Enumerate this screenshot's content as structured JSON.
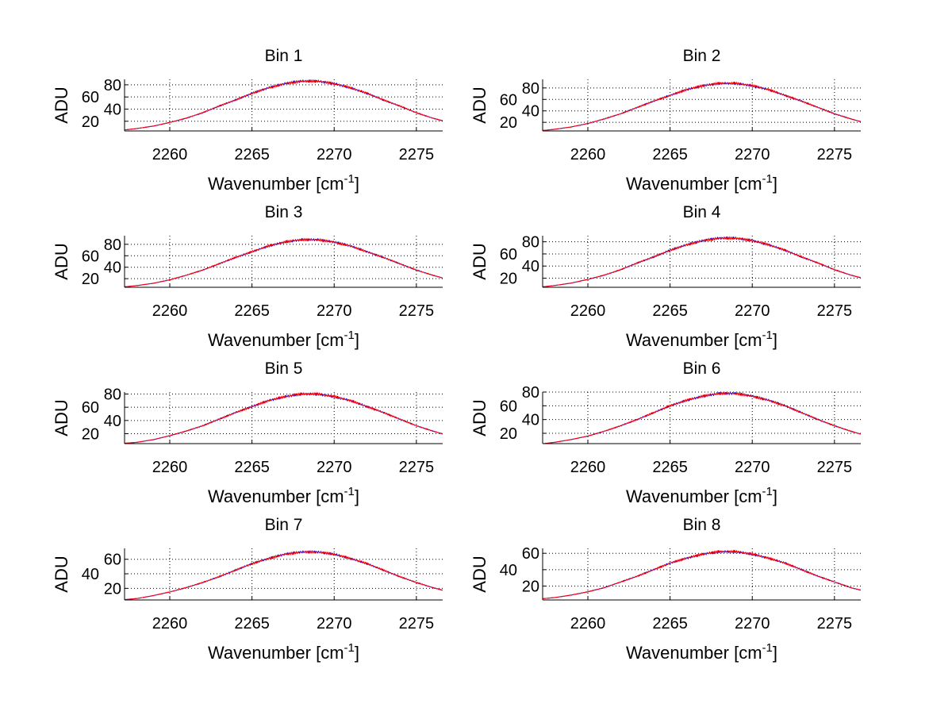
{
  "chart_data": [
    {
      "type": "line",
      "title": "Bin 1",
      "xlabel": "Wavenumber [cm",
      "xlabel_sup": "-1",
      "xlabel_end": "]",
      "ylabel": "ADU",
      "xlim": [
        2257.25,
        2276.6
      ],
      "ylim": [
        4,
        89
      ],
      "xticks": [
        2260,
        2265,
        2270,
        2275
      ],
      "yticks": [
        20,
        40,
        60,
        80
      ],
      "grid": true,
      "x": [
        2257,
        2258,
        2259,
        2260,
        2261,
        2262,
        2263,
        2264,
        2265,
        2266,
        2267,
        2268,
        2269,
        2270,
        2271,
        2272,
        2273,
        2274,
        2275,
        2276,
        2277
      ],
      "series": [
        {
          "name": "blue",
          "color": "#0000ff",
          "values": [
            5,
            8,
            12,
            18,
            25,
            34,
            45,
            55,
            66,
            75,
            82,
            86,
            86,
            82,
            75,
            66,
            55,
            45,
            34,
            25,
            18
          ]
        },
        {
          "name": "red",
          "color": "#ff0000",
          "values": [
            5,
            8,
            12,
            18,
            25,
            34,
            45,
            55,
            66,
            75,
            82,
            86,
            86,
            82,
            75,
            66,
            55,
            45,
            34,
            25,
            18
          ]
        }
      ]
    },
    {
      "type": "line",
      "title": "Bin 2",
      "xlabel": "Wavenumber [cm",
      "xlabel_sup": "-1",
      "xlabel_end": "]",
      "ylabel": "ADU",
      "xlim": [
        2257.25,
        2276.6
      ],
      "ylim": [
        5,
        95
      ],
      "xticks": [
        2260,
        2265,
        2270,
        2275
      ],
      "yticks": [
        20,
        40,
        60,
        80
      ],
      "grid": true,
      "x": [
        2257,
        2258,
        2259,
        2260,
        2261,
        2262,
        2263,
        2264,
        2265,
        2266,
        2267,
        2268,
        2269,
        2270,
        2271,
        2272,
        2273,
        2274,
        2275,
        2276,
        2277
      ],
      "series": [
        {
          "name": "blue",
          "color": "#0000ff",
          "values": [
            5,
            8,
            12,
            18,
            26,
            35,
            46,
            57,
            67,
            77,
            84,
            88,
            88,
            84,
            77,
            67,
            57,
            46,
            35,
            26,
            18
          ]
        },
        {
          "name": "red",
          "color": "#ff0000",
          "values": [
            5,
            8,
            12,
            18,
            26,
            35,
            46,
            57,
            67,
            77,
            84,
            88,
            88,
            84,
            77,
            67,
            57,
            46,
            35,
            26,
            18
          ]
        }
      ]
    },
    {
      "type": "line",
      "title": "Bin 3",
      "xlabel": "Wavenumber [cm",
      "xlabel_sup": "-1",
      "xlabel_end": "]",
      "ylabel": "ADU",
      "xlim": [
        2257.25,
        2276.6
      ],
      "ylim": [
        5,
        95
      ],
      "xticks": [
        2260,
        2265,
        2270,
        2275
      ],
      "yticks": [
        20,
        40,
        60,
        80
      ],
      "grid": true,
      "x": [
        2257,
        2258,
        2259,
        2260,
        2261,
        2262,
        2263,
        2264,
        2265,
        2266,
        2267,
        2268,
        2269,
        2270,
        2271,
        2272,
        2273,
        2274,
        2275,
        2276,
        2277
      ],
      "series": [
        {
          "name": "blue",
          "color": "#0000ff",
          "values": [
            5,
            8,
            12,
            18,
            26,
            35,
            46,
            57,
            67,
            77,
            84,
            88,
            88,
            84,
            77,
            67,
            57,
            46,
            35,
            26,
            18
          ]
        },
        {
          "name": "red",
          "color": "#ff0000",
          "values": [
            5,
            8,
            12,
            18,
            26,
            35,
            46,
            57,
            67,
            77,
            84,
            88,
            88,
            84,
            77,
            67,
            57,
            46,
            35,
            26,
            18
          ]
        }
      ]
    },
    {
      "type": "line",
      "title": "Bin 4",
      "xlabel": "Wavenumber [cm",
      "xlabel_sup": "-1",
      "xlabel_end": "]",
      "ylabel": "ADU",
      "xlim": [
        2257.25,
        2276.6
      ],
      "ylim": [
        5,
        90
      ],
      "xticks": [
        2260,
        2265,
        2270,
        2275
      ],
      "yticks": [
        20,
        40,
        60,
        80
      ],
      "grid": true,
      "x": [
        2257,
        2258,
        2259,
        2260,
        2261,
        2262,
        2263,
        2264,
        2265,
        2266,
        2267,
        2268,
        2269,
        2270,
        2271,
        2272,
        2273,
        2274,
        2275,
        2276,
        2277
      ],
      "series": [
        {
          "name": "blue",
          "color": "#0000ff",
          "values": [
            5,
            8,
            12,
            18,
            25,
            34,
            45,
            55,
            66,
            75,
            82,
            86,
            86,
            82,
            75,
            66,
            55,
            45,
            34,
            25,
            18
          ]
        },
        {
          "name": "red",
          "color": "#ff0000",
          "values": [
            5,
            8,
            12,
            18,
            25,
            34,
            45,
            55,
            66,
            75,
            82,
            86,
            86,
            82,
            75,
            66,
            55,
            45,
            34,
            25,
            18
          ]
        }
      ]
    },
    {
      "type": "line",
      "title": "Bin 5",
      "xlabel": "Wavenumber [cm",
      "xlabel_sup": "-1",
      "xlabel_end": "]",
      "ylabel": "ADU",
      "xlim": [
        2257.25,
        2276.6
      ],
      "ylim": [
        5,
        83
      ],
      "xticks": [
        2260,
        2265,
        2270,
        2275
      ],
      "yticks": [
        20,
        40,
        60,
        80
      ],
      "grid": true,
      "x": [
        2257,
        2258,
        2259,
        2260,
        2261,
        2262,
        2263,
        2264,
        2265,
        2266,
        2267,
        2268,
        2269,
        2270,
        2271,
        2272,
        2273,
        2274,
        2275,
        2276,
        2277
      ],
      "series": [
        {
          "name": "blue",
          "color": "#0000ff",
          "values": [
            5,
            7,
            11,
            17,
            24,
            32,
            42,
            52,
            61,
            70,
            76,
            80,
            80,
            76,
            70,
            61,
            52,
            42,
            32,
            24,
            17
          ]
        },
        {
          "name": "red",
          "color": "#ff0000",
          "values": [
            5,
            7,
            11,
            17,
            24,
            32,
            42,
            52,
            61,
            70,
            76,
            80,
            80,
            76,
            70,
            61,
            52,
            42,
            32,
            24,
            17
          ]
        }
      ]
    },
    {
      "type": "line",
      "title": "Bin 6",
      "xlabel": "Wavenumber [cm",
      "xlabel_sup": "-1",
      "xlabel_end": "]",
      "ylabel": "ADU",
      "xlim": [
        2257.25,
        2276.6
      ],
      "ylim": [
        5,
        80
      ],
      "xticks": [
        2260,
        2265,
        2270,
        2275
      ],
      "yticks": [
        20,
        40,
        60,
        80
      ],
      "grid": true,
      "x": [
        2257,
        2258,
        2259,
        2260,
        2261,
        2262,
        2263,
        2264,
        2265,
        2266,
        2267,
        2268,
        2269,
        2270,
        2271,
        2272,
        2273,
        2274,
        2275,
        2276,
        2277
      ],
      "series": [
        {
          "name": "blue",
          "color": "#0000ff",
          "values": [
            4,
            7,
            11,
            16,
            23,
            31,
            40,
            50,
            60,
            68,
            74,
            78,
            78,
            74,
            68,
            60,
            50,
            40,
            31,
            23,
            16
          ]
        },
        {
          "name": "red",
          "color": "#ff0000",
          "values": [
            4,
            7,
            11,
            16,
            23,
            31,
            40,
            50,
            60,
            68,
            74,
            78,
            78,
            74,
            68,
            60,
            50,
            40,
            31,
            23,
            16
          ]
        }
      ]
    },
    {
      "type": "line",
      "title": "Bin 7",
      "xlabel": "Wavenumber [cm",
      "xlabel_sup": "-1",
      "xlabel_end": "]",
      "ylabel": "ADU",
      "xlim": [
        2257.25,
        2276.6
      ],
      "ylim": [
        4,
        75
      ],
      "xticks": [
        2260,
        2265,
        2270,
        2275
      ],
      "yticks": [
        20,
        40,
        60
      ],
      "grid": true,
      "x": [
        2257,
        2258,
        2259,
        2260,
        2261,
        2262,
        2263,
        2264,
        2265,
        2266,
        2267,
        2268,
        2269,
        2270,
        2271,
        2272,
        2273,
        2274,
        2275,
        2276,
        2277
      ],
      "series": [
        {
          "name": "blue",
          "color": "#0000ff",
          "values": [
            4,
            6,
            10,
            15,
            21,
            28,
            36,
            45,
            54,
            61,
            67,
            70,
            70,
            67,
            61,
            54,
            45,
            36,
            28,
            21,
            15
          ]
        },
        {
          "name": "red",
          "color": "#ff0000",
          "values": [
            4,
            6,
            10,
            15,
            21,
            28,
            36,
            45,
            54,
            61,
            67,
            70,
            70,
            67,
            61,
            54,
            45,
            36,
            28,
            21,
            15
          ]
        }
      ]
    },
    {
      "type": "line",
      "title": "Bin 8",
      "xlabel": "Wavenumber [cm",
      "xlabel_sup": "-1",
      "xlabel_end": "]",
      "ylabel": "ADU",
      "xlim": [
        2257.25,
        2276.6
      ],
      "ylim": [
        3,
        66
      ],
      "xticks": [
        2260,
        2265,
        2270,
        2275
      ],
      "yticks": [
        20,
        40,
        60
      ],
      "grid": true,
      "x": [
        2257,
        2258,
        2259,
        2260,
        2261,
        2262,
        2263,
        2264,
        2265,
        2266,
        2267,
        2268,
        2269,
        2270,
        2271,
        2272,
        2273,
        2274,
        2275,
        2276,
        2277
      ],
      "series": [
        {
          "name": "blue",
          "color": "#0000ff",
          "values": [
            4,
            6,
            9,
            13,
            18,
            25,
            32,
            40,
            48,
            54,
            59,
            62,
            62,
            59,
            54,
            48,
            40,
            32,
            25,
            18,
            13
          ]
        },
        {
          "name": "red",
          "color": "#ff0000",
          "values": [
            4,
            6,
            9,
            13,
            18,
            25,
            32,
            40,
            48,
            54,
            59,
            62,
            62,
            59,
            54,
            48,
            40,
            32,
            25,
            18,
            13
          ]
        }
      ]
    }
  ]
}
